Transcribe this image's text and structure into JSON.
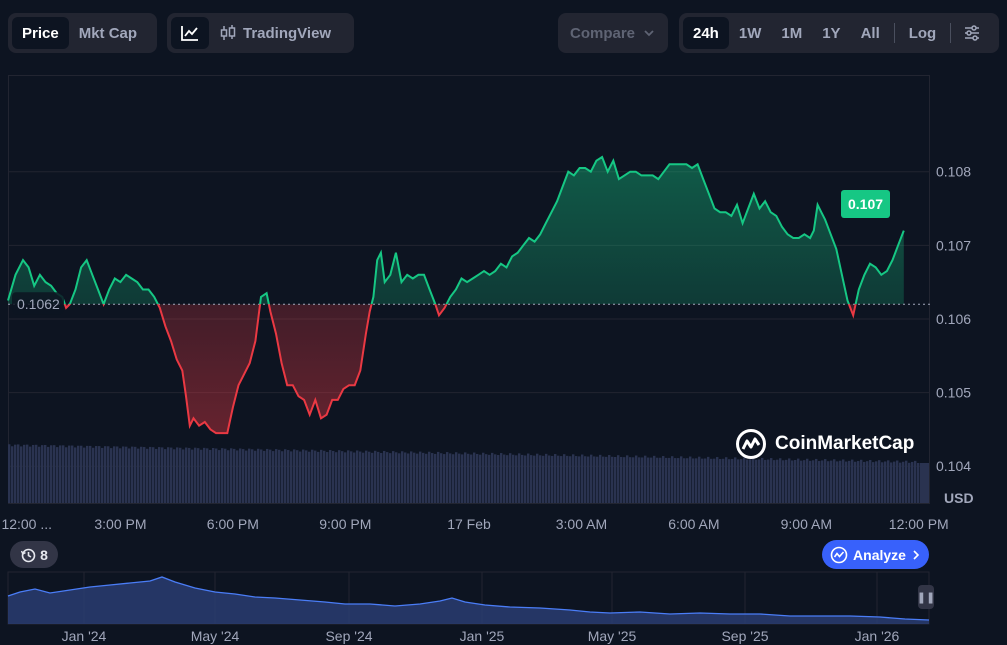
{
  "toolbar": {
    "price_label": "Price",
    "mktcap_label": "Mkt Cap",
    "line_chart_icon": "line-chart-icon",
    "tradingview_icon": "candlestick-icon",
    "tradingview_label": "TradingView",
    "compare_label": "Compare",
    "compare_icon": "chevron-down-icon",
    "ranges": [
      "24h",
      "1W",
      "1M",
      "1Y",
      "All"
    ],
    "active_range": "24h",
    "log_label": "Log",
    "settings_icon": "sliders-icon"
  },
  "chart_data": {
    "type": "area",
    "baseline": 0.1062,
    "baseline_label": "0.1062",
    "current_label": "0.107",
    "ylim": [
      0.1035,
      0.1093
    ],
    "y_ticks": [
      "0.108",
      "0.107",
      "0.106",
      "0.105",
      "0.104"
    ],
    "y_tick_values": [
      0.108,
      0.107,
      0.106,
      0.105,
      0.104
    ],
    "y_unit": "USD",
    "x_tick_labels": [
      "12:00 ...",
      "3:00 PM",
      "6:00 PM",
      "9:00 PM",
      "17 Feb",
      "3:00 AM",
      "6:00 AM",
      "9:00 AM",
      "12:00 PM"
    ],
    "x_tick_hours": [
      0.5,
      3,
      6,
      9,
      12.3,
      15.3,
      18.3,
      21.3,
      24.3
    ],
    "xlim_hours": [
      0,
      24.6
    ],
    "grid": true,
    "colors": {
      "up": "#16c784",
      "down": "#ea3943",
      "volume": "#2a3350"
    },
    "series": [
      {
        "values": [
          [
            0.0,
            0.10625
          ],
          [
            0.2,
            0.1066
          ],
          [
            0.4,
            0.1068
          ],
          [
            0.55,
            0.1067
          ],
          [
            0.7,
            0.10645
          ],
          [
            0.85,
            0.1066
          ],
          [
            1.0,
            0.1065
          ],
          [
            1.15,
            0.10645
          ],
          [
            1.3,
            0.10635
          ],
          [
            1.45,
            0.1063
          ],
          [
            1.55,
            0.10615
          ],
          [
            1.65,
            0.1062
          ],
          [
            1.8,
            0.1064
          ],
          [
            1.95,
            0.1067
          ],
          [
            2.1,
            0.1068
          ],
          [
            2.25,
            0.1066
          ],
          [
            2.4,
            0.1064
          ],
          [
            2.55,
            0.1062
          ],
          [
            2.7,
            0.1064
          ],
          [
            2.85,
            0.10655
          ],
          [
            3.0,
            0.1065
          ],
          [
            3.15,
            0.1066
          ],
          [
            3.3,
            0.10655
          ],
          [
            3.45,
            0.1065
          ],
          [
            3.6,
            0.1064
          ],
          [
            3.75,
            0.1064
          ],
          [
            3.9,
            0.1063
          ],
          [
            4.05,
            0.10615
          ],
          [
            4.2,
            0.1059
          ],
          [
            4.35,
            0.1057
          ],
          [
            4.5,
            0.10545
          ],
          [
            4.65,
            0.1053
          ],
          [
            4.75,
            0.10495
          ],
          [
            4.85,
            0.10455
          ],
          [
            4.95,
            0.10465
          ],
          [
            5.1,
            0.10455
          ],
          [
            5.25,
            0.1046
          ],
          [
            5.4,
            0.1045
          ],
          [
            5.55,
            0.10445
          ],
          [
            5.7,
            0.10445
          ],
          [
            5.85,
            0.10445
          ],
          [
            6.0,
            0.1048
          ],
          [
            6.15,
            0.1051
          ],
          [
            6.3,
            0.10525
          ],
          [
            6.45,
            0.1054
          ],
          [
            6.6,
            0.1057
          ],
          [
            6.75,
            0.1063
          ],
          [
            6.9,
            0.10635
          ],
          [
            7.0,
            0.1061
          ],
          [
            7.15,
            0.1058
          ],
          [
            7.3,
            0.1054
          ],
          [
            7.45,
            0.1051
          ],
          [
            7.6,
            0.1051
          ],
          [
            7.75,
            0.10495
          ],
          [
            7.9,
            0.1049
          ],
          [
            8.05,
            0.1047
          ],
          [
            8.2,
            0.1049
          ],
          [
            8.35,
            0.10465
          ],
          [
            8.5,
            0.1047
          ],
          [
            8.65,
            0.1049
          ],
          [
            8.8,
            0.1049
          ],
          [
            8.95,
            0.10505
          ],
          [
            9.1,
            0.1051
          ],
          [
            9.25,
            0.1051
          ],
          [
            9.4,
            0.1053
          ],
          [
            9.55,
            0.1058
          ],
          [
            9.65,
            0.1061
          ],
          [
            9.75,
            0.1063
          ],
          [
            9.85,
            0.1068
          ],
          [
            9.95,
            0.1069
          ],
          [
            10.05,
            0.1065
          ],
          [
            10.2,
            0.1066
          ],
          [
            10.35,
            0.1069
          ],
          [
            10.5,
            0.1065
          ],
          [
            10.65,
            0.1066
          ],
          [
            10.8,
            0.10655
          ],
          [
            10.95,
            0.1066
          ],
          [
            11.1,
            0.1066
          ],
          [
            11.25,
            0.1064
          ],
          [
            11.4,
            0.1062
          ],
          [
            11.5,
            0.10605
          ],
          [
            11.65,
            0.10615
          ],
          [
            11.8,
            0.1063
          ],
          [
            11.95,
            0.1064
          ],
          [
            12.1,
            0.10655
          ],
          [
            12.25,
            0.1065
          ],
          [
            12.4,
            0.10655
          ],
          [
            12.55,
            0.1066
          ],
          [
            12.7,
            0.10665
          ],
          [
            12.85,
            0.1066
          ],
          [
            13.0,
            0.10665
          ],
          [
            13.15,
            0.10675
          ],
          [
            13.3,
            0.1067
          ],
          [
            13.45,
            0.10685
          ],
          [
            13.6,
            0.1069
          ],
          [
            13.75,
            0.107
          ],
          [
            13.9,
            0.1071
          ],
          [
            14.05,
            0.10705
          ],
          [
            14.2,
            0.10715
          ],
          [
            14.35,
            0.1073
          ],
          [
            14.5,
            0.10745
          ],
          [
            14.65,
            0.1076
          ],
          [
            14.8,
            0.1078
          ],
          [
            14.95,
            0.108
          ],
          [
            15.1,
            0.10795
          ],
          [
            15.25,
            0.10805
          ],
          [
            15.4,
            0.10805
          ],
          [
            15.55,
            0.108
          ],
          [
            15.7,
            0.10815
          ],
          [
            15.85,
            0.1082
          ],
          [
            16.0,
            0.108
          ],
          [
            16.15,
            0.10815
          ],
          [
            16.3,
            0.1079
          ],
          [
            16.45,
            0.10795
          ],
          [
            16.6,
            0.108
          ],
          [
            16.75,
            0.108
          ],
          [
            16.9,
            0.10795
          ],
          [
            17.05,
            0.10795
          ],
          [
            17.2,
            0.10795
          ],
          [
            17.35,
            0.1079
          ],
          [
            17.5,
            0.108
          ],
          [
            17.65,
            0.1081
          ],
          [
            17.8,
            0.1081
          ],
          [
            17.95,
            0.1081
          ],
          [
            18.1,
            0.1081
          ],
          [
            18.25,
            0.10805
          ],
          [
            18.4,
            0.1081
          ],
          [
            18.55,
            0.1079
          ],
          [
            18.7,
            0.1077
          ],
          [
            18.85,
            0.1075
          ],
          [
            19.0,
            0.10745
          ],
          [
            19.15,
            0.10745
          ],
          [
            19.3,
            0.1074
          ],
          [
            19.45,
            0.10755
          ],
          [
            19.6,
            0.1073
          ],
          [
            19.75,
            0.1075
          ],
          [
            19.9,
            0.1077
          ],
          [
            20.05,
            0.1075
          ],
          [
            20.2,
            0.1076
          ],
          [
            20.35,
            0.10745
          ],
          [
            20.5,
            0.1074
          ],
          [
            20.65,
            0.10725
          ],
          [
            20.8,
            0.10715
          ],
          [
            20.95,
            0.1071
          ],
          [
            21.1,
            0.1071
          ],
          [
            21.25,
            0.10715
          ],
          [
            21.4,
            0.1071
          ],
          [
            21.5,
            0.1072
          ],
          [
            21.6,
            0.10755
          ],
          [
            21.7,
            0.10745
          ],
          [
            21.8,
            0.10735
          ],
          [
            21.95,
            0.10715
          ],
          [
            22.1,
            0.10695
          ],
          [
            22.25,
            0.1066
          ],
          [
            22.4,
            0.10625
          ],
          [
            22.55,
            0.10605
          ],
          [
            22.7,
            0.1064
          ],
          [
            22.85,
            0.1066
          ],
          [
            23.0,
            0.10675
          ],
          [
            23.15,
            0.1067
          ],
          [
            23.3,
            0.1066
          ],
          [
            23.45,
            0.10665
          ],
          [
            23.6,
            0.1068
          ],
          [
            23.75,
            0.107
          ],
          [
            23.9,
            0.1072
          ]
        ]
      }
    ]
  },
  "navigator": {
    "x_tick_labels": [
      "Jan '24",
      "May '24",
      "Sep '24",
      "Jan '25",
      "May '25",
      "Sep '25",
      "Jan '26"
    ],
    "handle_icon": "pause-icon"
  },
  "events": {
    "count": "8",
    "icon": "history-icon"
  },
  "analyze": {
    "label": "Analyze",
    "icon": "analyze-icon",
    "chevron_icon": "chevron-right-icon"
  },
  "watermark": {
    "text": "CoinMarketCap",
    "logo": "coinmarketcap-logo"
  }
}
